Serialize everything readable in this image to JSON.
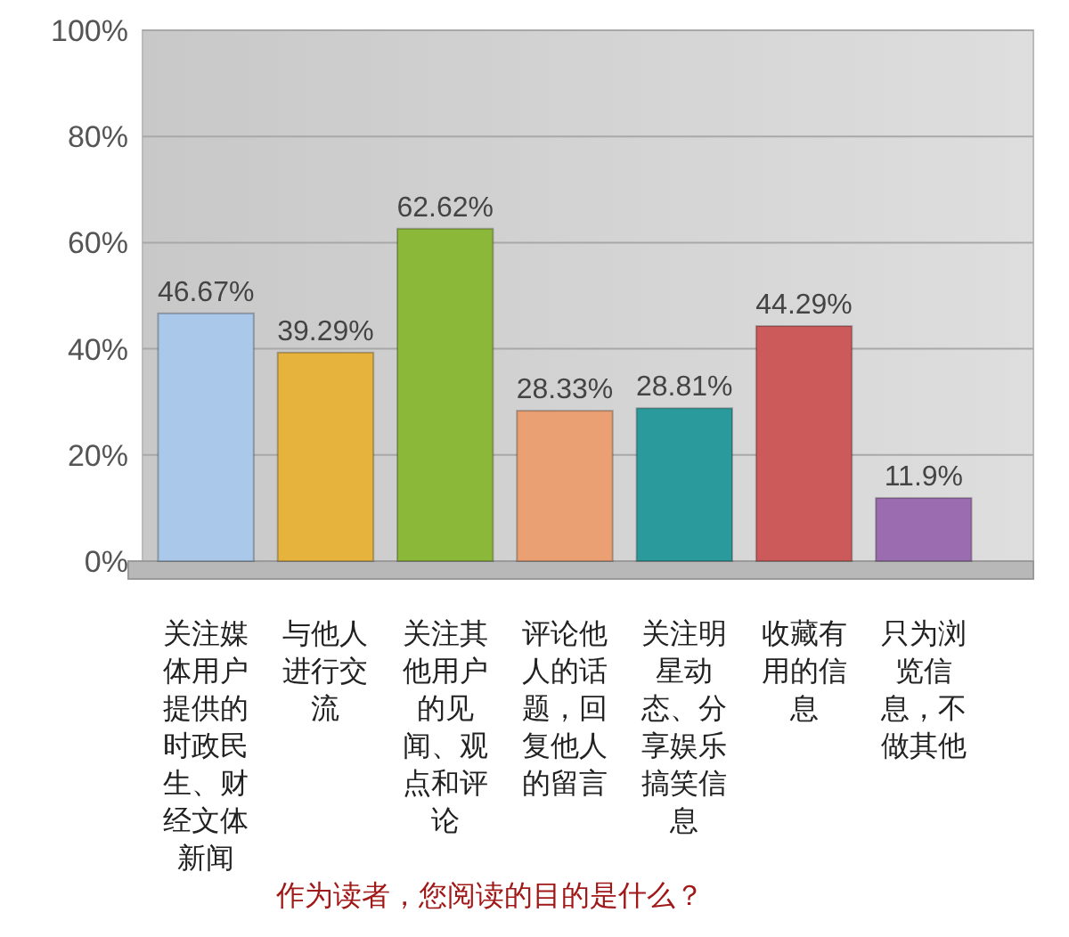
{
  "chart_data": {
    "type": "bar",
    "title": "作为读者，您阅读的目的是什么？",
    "categories": [
      "关注媒体用户提供的时政民生、财经文体新闻",
      "与他人进行交流",
      "关注其他用户的见闻、观点和评论",
      "评论他人的话题，回复他人的留言",
      "关注明星动态、分享娱乐搞笑信息",
      "收藏有用的信息",
      "只为浏览信息，不做其他"
    ],
    "values": [
      46.67,
      39.29,
      62.62,
      28.33,
      28.81,
      44.29,
      11.9
    ],
    "value_labels": [
      "46.67%",
      "39.29%",
      "62.62%",
      "28.33%",
      "28.81%",
      "44.29%",
      "11.9%"
    ],
    "colors": [
      "#a9c8ea",
      "#e6b43c",
      "#8cb83a",
      "#eba074",
      "#2a9a9c",
      "#cc5a5a",
      "#9c6cb0"
    ],
    "ylim": [
      0,
      100
    ],
    "yticks": [
      {
        "value": 0,
        "label": "0%"
      },
      {
        "value": 20,
        "label": "20%"
      },
      {
        "value": 40,
        "label": "40%"
      },
      {
        "value": 60,
        "label": "60%"
      },
      {
        "value": 80,
        "label": "80%"
      },
      {
        "value": 100,
        "label": "100%"
      }
    ],
    "grid": "y"
  }
}
